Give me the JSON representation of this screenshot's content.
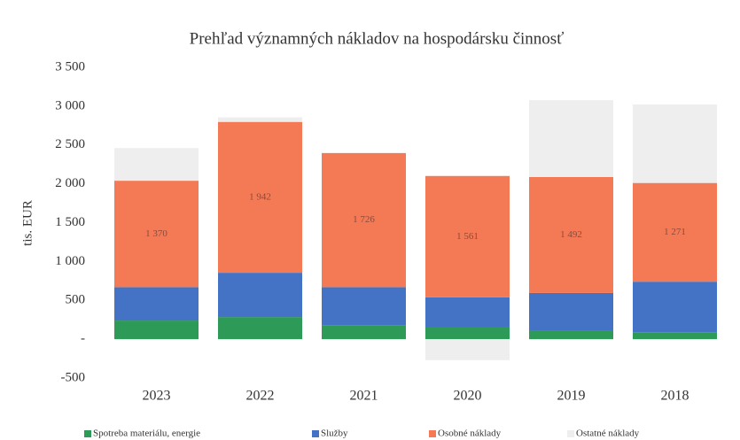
{
  "chart_data": {
    "type": "bar",
    "stacked": true,
    "title": "Prehľad významných nákladov na hospodársku činnosť",
    "y_label": "tis. EUR",
    "categories": [
      "2023",
      "2022",
      "2021",
      "2020",
      "2019",
      "2018"
    ],
    "series": [
      {
        "name": "Spotreba materiálu, energie",
        "color": "#2e9a57",
        "values": [
          240,
          285,
          180,
          150,
          115,
          90
        ]
      },
      {
        "name": "Služby",
        "color": "#4472c4",
        "values": [
          430,
          570,
          490,
          390,
          480,
          650
        ]
      },
      {
        "name": "Osobné náklady",
        "color": "#f47a55",
        "values": [
          1370,
          1942,
          1726,
          1561,
          1492,
          1271
        ],
        "value_labels": [
          "1 370",
          "1 942",
          "1 726",
          "1 561",
          "1 492",
          "1 271"
        ]
      },
      {
        "name": "Ostatné náklady",
        "color": "#eeeeee",
        "values": [
          420,
          60,
          0,
          -270,
          990,
          1010
        ]
      }
    ],
    "ylim": [
      -500,
      3500
    ],
    "yticks": [
      {
        "value": -500,
        "label": "-500"
      },
      {
        "value": 0,
        "label": "-"
      },
      500,
      {
        "value": 1000,
        "label": "1 000"
      },
      {
        "value": 1500,
        "label": "1 500"
      },
      {
        "value": 2000,
        "label": "2 000"
      },
      {
        "value": 2500,
        "label": "2 500"
      },
      {
        "value": 3000,
        "label": "3 000"
      },
      {
        "value": 3500,
        "label": "3 500"
      }
    ]
  }
}
